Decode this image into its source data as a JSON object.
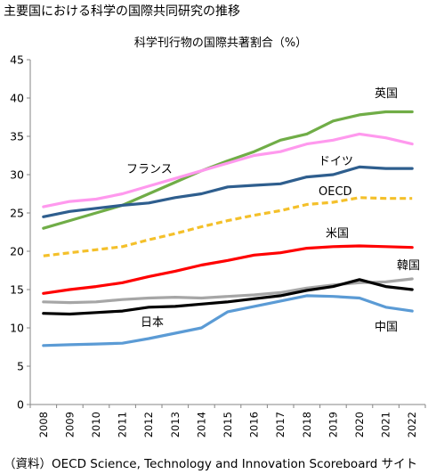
{
  "figure": {
    "title": "主要国における科学の国際共同研究の推移",
    "source": "（資料）OECD Science, Technology and Innovation Scoreboard サイト"
  },
  "chart_data": {
    "type": "line",
    "title": "科学刊行物の国際共著割合（%）",
    "xlabel": "",
    "ylabel": "",
    "x": [
      "2008",
      "2009",
      "2010",
      "2011",
      "2012",
      "2013",
      "2014",
      "2015",
      "2016",
      "2017",
      "2018",
      "2019",
      "2020",
      "2021",
      "2022"
    ],
    "ylim": [
      0,
      45
    ],
    "yticks": [
      0,
      5,
      10,
      15,
      20,
      25,
      30,
      35,
      40,
      45
    ],
    "grid": false,
    "legend": "inline labels",
    "series": [
      {
        "name": "英国",
        "color": "#70ad47",
        "dashed": false,
        "values": [
          23.0,
          24.0,
          25.0,
          26.0,
          27.5,
          29.0,
          30.5,
          31.8,
          33.0,
          34.5,
          35.3,
          37.0,
          37.8,
          38.2,
          38.2
        ]
      },
      {
        "name": "フランス",
        "color": "#ff99ee",
        "dashed": false,
        "values": [
          25.8,
          26.5,
          26.8,
          27.5,
          28.5,
          29.5,
          30.5,
          31.5,
          32.5,
          33.0,
          34.0,
          34.5,
          35.3,
          34.8,
          34.0
        ]
      },
      {
        "name": "ドイツ",
        "color": "#2e5e8e",
        "dashed": false,
        "values": [
          24.5,
          25.2,
          25.6,
          26.0,
          26.3,
          27.0,
          27.5,
          28.4,
          28.6,
          28.8,
          29.7,
          30.0,
          31.0,
          30.8,
          30.8
        ]
      },
      {
        "name": "OECD",
        "color": "#f4c02a",
        "dashed": true,
        "values": [
          19.4,
          19.8,
          20.2,
          20.6,
          21.5,
          22.3,
          23.2,
          24.0,
          24.7,
          25.3,
          26.1,
          26.4,
          27.0,
          26.9,
          26.9
        ]
      },
      {
        "name": "米国",
        "color": "#ff0000",
        "dashed": false,
        "values": [
          14.5,
          15.0,
          15.4,
          15.9,
          16.7,
          17.4,
          18.2,
          18.8,
          19.5,
          19.8,
          20.4,
          20.6,
          20.7,
          20.6,
          20.5
        ]
      },
      {
        "name": "韓国",
        "color": "#a6a6a6",
        "dashed": false,
        "values": [
          13.4,
          13.3,
          13.4,
          13.7,
          13.9,
          14.0,
          13.9,
          14.1,
          14.3,
          14.6,
          15.2,
          15.6,
          15.9,
          16.0,
          16.4
        ]
      },
      {
        "name": "日本",
        "color": "#000000",
        "dashed": false,
        "values": [
          11.9,
          11.8,
          12.0,
          12.2,
          12.7,
          12.8,
          13.1,
          13.4,
          13.8,
          14.2,
          14.9,
          15.4,
          16.3,
          15.4,
          15.0
        ]
      },
      {
        "name": "中国",
        "color": "#5b9bd5",
        "dashed": false,
        "values": [
          7.7,
          7.8,
          7.9,
          8.0,
          8.6,
          9.3,
          10.0,
          12.1,
          12.8,
          13.5,
          14.2,
          14.1,
          13.9,
          12.7,
          12.2
        ]
      }
    ]
  }
}
